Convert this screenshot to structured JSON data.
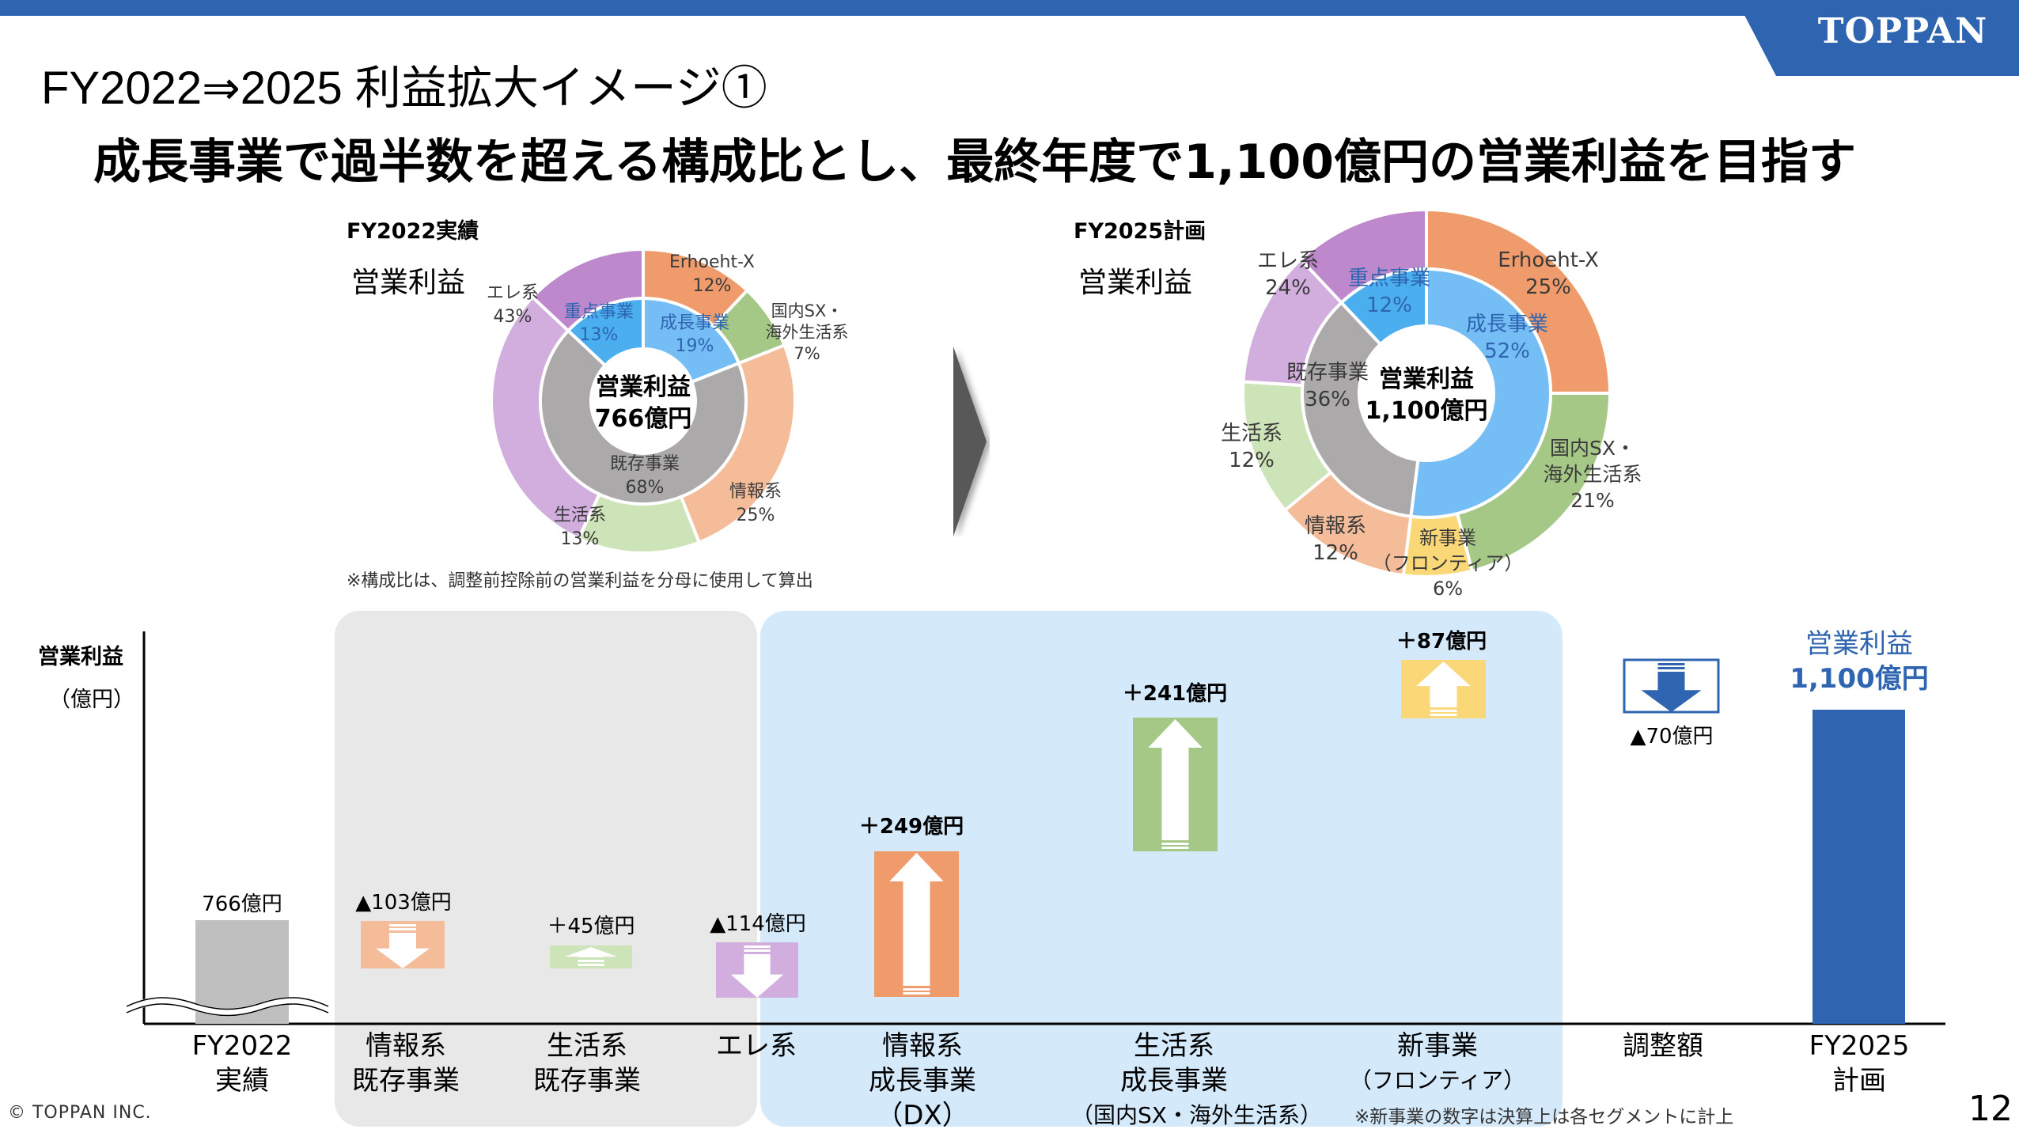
{
  "header": {
    "logo": "TOPPAN",
    "title": "FY2022⇒2025 利益拡大イメージ①",
    "subtitle": "成長事業で過半数を超える構成比とし、最終年度で1,100億円の営業利益を目指す"
  },
  "colors": {
    "brand_blue": "#2E64B0",
    "erhoeht": "#F09B6B",
    "kokunai_sx": "#A5C887",
    "joho": "#F5BC9A",
    "seikatsu": "#CDE3B8",
    "ere": "#D2AEDF",
    "ere_dark": "#BD88CC",
    "shinjigyo": "#FAD877",
    "seicho": "#74BDF5",
    "juten": "#4BAEEF",
    "kizon": "#ABA9A9",
    "fy2022_bar": "#BFBFBF",
    "panel_grey": "#E8E8E8",
    "panel_blue": "#D4EAFB"
  },
  "chart_data": [
    {
      "type": "pie",
      "variant": "double-donut",
      "title": "FY2022実績",
      "subtitle": "営業利益",
      "center_label": [
        "営業利益",
        "766億円"
      ],
      "inner": [
        {
          "name": "成長事業",
          "value": 19,
          "label": "19%",
          "color": "#74BDF5"
        },
        {
          "name": "既存事業",
          "value": 68,
          "label": "68%",
          "color": "#ABA9A9"
        },
        {
          "name": "重点事業",
          "value": 13,
          "label": "13%",
          "color": "#4BAEEF"
        }
      ],
      "outer": [
        {
          "name": "Erhoeht-X",
          "value": 12,
          "label": "12%",
          "color": "#F09B6B"
        },
        {
          "name": "国内SX・海外生活系",
          "name_lines": [
            "国内SX・",
            "海外生活系"
          ],
          "value": 7,
          "label": "7%",
          "color": "#A5C887"
        },
        {
          "name": "情報系",
          "value": 25,
          "label": "25%",
          "color": "#F5BC9A"
        },
        {
          "name": "生活系",
          "value": 13,
          "label": "13%",
          "color": "#CDE3B8"
        },
        {
          "name": "エレ系",
          "value": 43,
          "label": "43%",
          "color": "#D2AEDF"
        }
      ],
      "note": "※構成比は、調整前控除前の営業利益を分母に使用して算出"
    },
    {
      "type": "pie",
      "variant": "double-donut",
      "title": "FY2025計画",
      "subtitle": "営業利益",
      "center_label": [
        "営業利益",
        "1,100億円"
      ],
      "inner": [
        {
          "name": "成長事業",
          "value": 52,
          "label": "52%",
          "color": "#74BDF5"
        },
        {
          "name": "既存事業",
          "value": 36,
          "label": "36%",
          "color": "#ABA9A9"
        },
        {
          "name": "重点事業",
          "value": 12,
          "label": "12%",
          "color": "#4BAEEF"
        }
      ],
      "outer": [
        {
          "name": "Erhoeht-X",
          "value": 25,
          "label": "25%",
          "color": "#F09B6B"
        },
        {
          "name": "国内SX・海外生活系",
          "name_lines": [
            "国内SX・",
            "海外生活系"
          ],
          "value": 21,
          "label": "21%",
          "color": "#A5C887"
        },
        {
          "name": "新事業（フロンティア）",
          "name_lines": [
            "新事業",
            "（フロンティア）"
          ],
          "value": 6,
          "label": "6%",
          "color": "#FAD877"
        },
        {
          "name": "情報系",
          "value": 12,
          "label": "12%",
          "color": "#F5BC9A"
        },
        {
          "name": "生活系",
          "value": 12,
          "label": "12%",
          "color": "#CDE3B8"
        },
        {
          "name": "エレ系",
          "value": 24,
          "label": "24%",
          "color": "#D2AEDF"
        }
      ]
    },
    {
      "type": "bar",
      "variant": "waterfall",
      "ylabel": "営業利益",
      "yunit": "（億円）",
      "axis_break": true,
      "start": {
        "category": [
          "FY2022",
          "実績"
        ],
        "value": 766,
        "label": "766億円"
      },
      "steps": [
        {
          "category": [
            "情報系",
            "既存事業"
          ],
          "delta": -103,
          "label": "▲103億円",
          "color": "#F5BC9A",
          "group": "existing"
        },
        {
          "category": [
            "生活系",
            "既存事業"
          ],
          "delta": 45,
          "label": "＋45億円",
          "color": "#CDE3B8",
          "group": "existing"
        },
        {
          "category": [
            "エレ系"
          ],
          "delta": -114,
          "label": "▲114億円",
          "color": "#D2AEDF",
          "group": "existing"
        },
        {
          "category": [
            "情報系",
            "成長事業",
            "（DX）"
          ],
          "delta": 249,
          "label": "＋249億円",
          "color": "#F09B6B",
          "group": "growth"
        },
        {
          "category": [
            "生活系",
            "成長事業",
            "（国内SX・海外生活系）"
          ],
          "delta": 241,
          "label": "＋241億円",
          "color": "#A5C887",
          "group": "growth"
        },
        {
          "category": [
            "新事業",
            "（フロンティア）"
          ],
          "delta": 87,
          "label": "＋87億円",
          "color": "#FAD877",
          "group": "growth"
        },
        {
          "category": [
            "調整額"
          ],
          "delta": -70,
          "label": "▲70億円",
          "color": "#2E64B0",
          "group": "adjustment"
        }
      ],
      "end": {
        "category": [
          "FY2025",
          "計画"
        ],
        "value": 1100,
        "label_lines": [
          "営業利益",
          "1,100億円"
        ]
      },
      "note": "※新事業の数字は決算上は各セグメントに計上"
    }
  ],
  "footer": {
    "copyright": "© TOPPAN INC.",
    "page": "12"
  }
}
